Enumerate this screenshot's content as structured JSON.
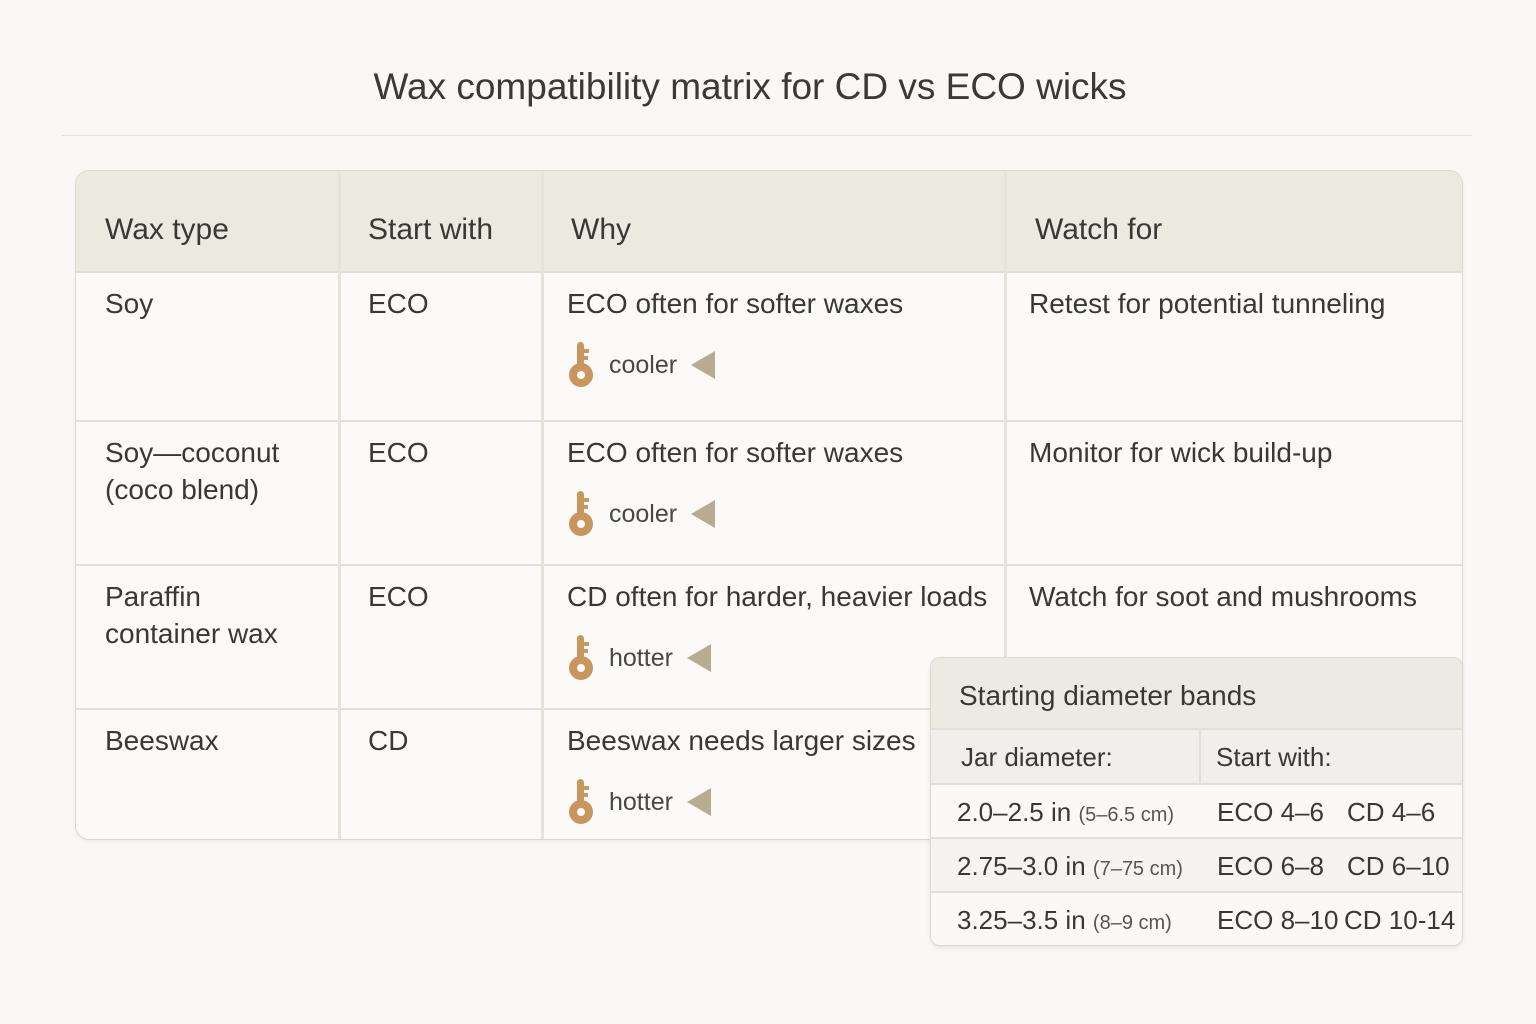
{
  "title": "Wax compatibility matrix for CD vs ECO wicks",
  "matrix": {
    "headers": [
      "Wax type",
      "Start with",
      "Why",
      "Watch for"
    ],
    "rows": [
      {
        "wax": "Soy",
        "start": "ECO",
        "why": "ECO often for softer waxes",
        "tag": "cooler",
        "watch": "Retest for potential tunneling"
      },
      {
        "wax": "Soy—coconut (coco blend)",
        "start": "ECO",
        "why": "ECO often for softer waxes",
        "tag": "cooler",
        "watch": "Monitor for wick build-up"
      },
      {
        "wax": "Paraffin container wax",
        "start": "ECO",
        "why": "CD often for harder, heavier loads",
        "tag": "hotter",
        "watch": "Watch for soot and mushrooms"
      },
      {
        "wax": "Beeswax",
        "start": "CD",
        "why": "Beeswax needs larger sizes",
        "tag": "hotter",
        "watch": ""
      }
    ],
    "tag_icon": "key-icon",
    "tag_arrow_icon": "triangle-left-icon"
  },
  "bands": {
    "title": "Starting diameter bands",
    "headers": [
      "Jar diameter:",
      "Start with:"
    ],
    "rows": [
      {
        "in": "2.0–2.5 in",
        "cm": "(5–6.5 cm)",
        "eco": "ECO 4–6",
        "cd": "CD 4–6"
      },
      {
        "in": "2.75–3.0 in",
        "cm": "(7–75 cm)",
        "eco": "ECO 6–8",
        "cd": "CD 6–10"
      },
      {
        "in": "3.25–3.5 in",
        "cm": "(8–9 cm)",
        "eco": "ECO 8–10",
        "cd": "CD 10-14"
      }
    ]
  },
  "colors": {
    "header_bg": "#ece9df",
    "icon": "#c9965f",
    "arrow": "#b9ab90"
  }
}
